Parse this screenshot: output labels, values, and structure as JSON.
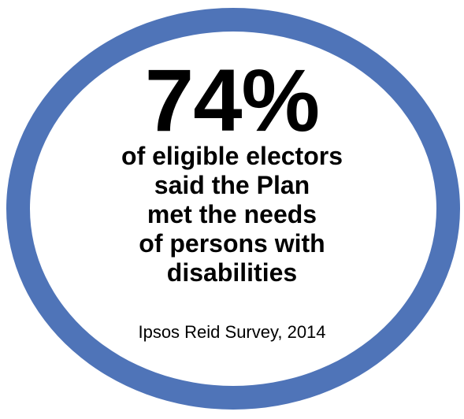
{
  "graphic": {
    "stat": "74%",
    "statement_lines": [
      "of eligible electors",
      "said the Plan",
      "met the needs",
      "of persons with",
      "disabilities"
    ],
    "source": "Ipsos Reid Survey, 2014",
    "ring_color": "#4f74b8",
    "text_color": "#000000",
    "background_color": "#ffffff"
  }
}
